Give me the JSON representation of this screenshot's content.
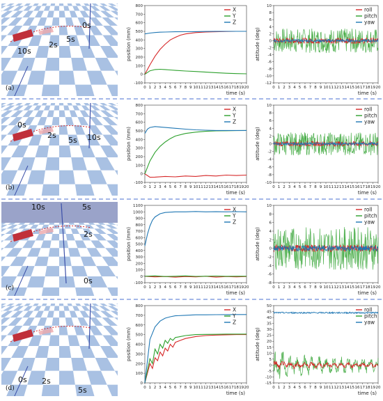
{
  "colors": {
    "x": "#d62728",
    "y": "#2ca02c",
    "z": "#1f77b4",
    "tile": "#a9c1e3",
    "sky": "#dfe8f3",
    "divider": "#4a6fd0"
  },
  "rows": [
    {
      "label": "(a)",
      "scene": {
        "time_labels": [
          "0s",
          "2s",
          "5s",
          "10s"
        ]
      },
      "position": {
        "type": "line",
        "ylabel": "position (mm)",
        "xlabel": "time (s)",
        "ylim": [
          -100,
          800
        ],
        "yticks": [
          -100,
          0,
          100,
          200,
          300,
          400,
          500,
          600,
          700,
          800
        ],
        "xticks": [
          "0",
          "1",
          "2",
          "3",
          "4",
          "5",
          "6",
          "7",
          "8",
          "9",
          "10",
          "11",
          "12",
          "13",
          "14",
          "15",
          "16",
          "17",
          "18",
          "19",
          "20"
        ],
        "legend": [
          "X",
          "Y",
          "Z"
        ],
        "series": [
          {
            "name": "X",
            "x": [
              0,
              1,
              2,
              3,
              4,
              5,
              6,
              7,
              8,
              10,
              12,
              14,
              16,
              18,
              20
            ],
            "values": [
              0,
              110,
              210,
              290,
              350,
              400,
              430,
              455,
              470,
              485,
              492,
              495,
              498,
              500,
              500
            ]
          },
          {
            "name": "Y",
            "x": [
              0,
              1,
              2,
              3,
              4,
              5,
              6,
              8,
              10,
              12,
              14,
              16,
              18,
              20
            ],
            "values": [
              0,
              40,
              55,
              58,
              55,
              50,
              45,
              38,
              32,
              25,
              18,
              12,
              8,
              5
            ]
          },
          {
            "name": "Z",
            "x": [
              0,
              1,
              2,
              3,
              4,
              6,
              8,
              10,
              12,
              14,
              16,
              18,
              20
            ],
            "values": [
              470,
              480,
              486,
              490,
              492,
              495,
              496,
              497,
              498,
              499,
              500,
              500,
              500
            ]
          }
        ]
      },
      "attitude": {
        "type": "line",
        "ylabel": "attitude (deg)",
        "xlabel": "time (s)",
        "ylim": [
          -12,
          10
        ],
        "yticks": [
          -12,
          -10,
          -8,
          -6,
          -4,
          -2,
          0,
          2,
          4,
          6,
          8,
          10
        ],
        "xticks": [
          "0",
          "1",
          "2",
          "3",
          "4",
          "5",
          "6",
          "7",
          "8",
          "9",
          "10",
          "11",
          "12",
          "13",
          "14",
          "15",
          "16",
          "17",
          "18",
          "19",
          "20"
        ],
        "legend": [
          "roll",
          "pitch",
          "yaw"
        ],
        "series": [
          {
            "name": "roll",
            "amplitude": 1.0,
            "offset": 0
          },
          {
            "name": "pitch",
            "amplitude": 3.5,
            "offset": 0
          },
          {
            "name": "yaw",
            "amplitude": 0.5,
            "offset": 0
          }
        ]
      }
    },
    {
      "label": "(b)",
      "scene": {
        "time_labels": [
          "0s",
          "2s",
          "5s",
          "10s"
        ]
      },
      "position": {
        "type": "line",
        "ylabel": "position (mm)",
        "xlabel": "time (s)",
        "ylim": [
          -100,
          800
        ],
        "yticks": [
          -100,
          0,
          100,
          200,
          300,
          400,
          500,
          600,
          700,
          800
        ],
        "xticks": [
          "0",
          "1",
          "2",
          "3",
          "4",
          "5",
          "6",
          "7",
          "8",
          "9",
          "10",
          "11",
          "12",
          "13",
          "14",
          "15",
          "16",
          "17",
          "18",
          "19",
          "20"
        ],
        "legend": [
          "X",
          "Y",
          "Z"
        ],
        "series": [
          {
            "name": "X",
            "x": [
              0,
              1,
              2,
              4,
              6,
              8,
              10,
              12,
              14,
              16,
              18,
              20
            ],
            "values": [
              0,
              -40,
              -38,
              -30,
              -35,
              -25,
              -30,
              -20,
              -25,
              -15,
              -20,
              -15
            ]
          },
          {
            "name": "Y",
            "x": [
              0,
              1,
              2,
              3,
              4,
              5,
              6,
              8,
              10,
              12,
              14,
              16,
              18,
              20
            ],
            "values": [
              0,
              150,
              250,
              320,
              370,
              410,
              440,
              470,
              485,
              495,
              500,
              502,
              503,
              505
            ]
          },
          {
            "name": "Z",
            "x": [
              0,
              0.5,
              1,
              2,
              3,
              4,
              6,
              8,
              10,
              12,
              14,
              16,
              18,
              20
            ],
            "values": [
              470,
              520,
              540,
              550,
              545,
              540,
              530,
              520,
              512,
              508,
              505,
              505,
              505,
              505
            ]
          }
        ]
      },
      "attitude": {
        "type": "line",
        "ylabel": "attitude (deg)",
        "xlabel": "time (s)",
        "ylim": [
          -10,
          10
        ],
        "yticks": [
          -10,
          -8,
          -6,
          -4,
          -2,
          0,
          2,
          4,
          6,
          8,
          10
        ],
        "xticks": [
          "0",
          "1",
          "2",
          "3",
          "4",
          "5",
          "6",
          "7",
          "8",
          "9",
          "10",
          "11",
          "12",
          "13",
          "14",
          "15",
          "16",
          "17",
          "18",
          "19",
          "20"
        ],
        "legend": [
          "roll",
          "pitch",
          "yaw"
        ],
        "series": [
          {
            "name": "roll",
            "amplitude": 0.8,
            "offset": 0
          },
          {
            "name": "pitch",
            "amplitude": 3.0,
            "offset": 0
          },
          {
            "name": "yaw",
            "amplitude": 0.4,
            "offset": 0
          }
        ]
      }
    },
    {
      "label": "(c)",
      "scene": {
        "time_labels": [
          "10s",
          "5s",
          "2s",
          "0s"
        ]
      },
      "position": {
        "type": "line",
        "ylabel": "position (mm)",
        "xlabel": "time (s)",
        "ylim": [
          -100,
          1100
        ],
        "yticks": [
          -100,
          0,
          100,
          200,
          300,
          400,
          500,
          600,
          700,
          800,
          900,
          1000,
          1100
        ],
        "xticks": [
          "0",
          "1",
          "2",
          "3",
          "4",
          "5",
          "6",
          "7",
          "8",
          "9",
          "10",
          "11",
          "12",
          "13",
          "14",
          "15",
          "16",
          "17",
          "18",
          "19",
          "20"
        ],
        "legend": [
          "X",
          "Y",
          "Z"
        ],
        "series": [
          {
            "name": "X",
            "x": [
              0,
              2,
              4,
              6,
              8,
              10,
              12,
              14,
              16,
              18,
              20
            ],
            "values": [
              0,
              -10,
              -5,
              -15,
              -5,
              -10,
              0,
              -15,
              -5,
              -10,
              -5
            ]
          },
          {
            "name": "Y",
            "x": [
              0,
              2,
              4,
              6,
              8,
              10,
              12,
              14,
              16,
              18,
              20
            ],
            "values": [
              0,
              5,
              -5,
              0,
              5,
              -3,
              0,
              3,
              -2,
              0,
              0
            ]
          },
          {
            "name": "Z",
            "x": [
              0,
              0.5,
              1,
              1.5,
              2,
              3,
              4,
              6,
              8,
              10,
              12,
              14,
              16,
              18,
              20
            ],
            "values": [
              470,
              650,
              780,
              870,
              920,
              970,
              990,
              1000,
              1000,
              1005,
              1000,
              1002,
              1000,
              1003,
              1000
            ]
          }
        ]
      },
      "attitude": {
        "type": "line",
        "ylabel": "attitude (deg)",
        "xlabel": "time (s)",
        "ylim": [
          -8,
          10
        ],
        "yticks": [
          -8,
          -6,
          -4,
          -2,
          0,
          2,
          4,
          6,
          8,
          10
        ],
        "xticks": [
          "0",
          "1",
          "2",
          "3",
          "4",
          "5",
          "6",
          "7",
          "8",
          "9",
          "10",
          "11",
          "12",
          "13",
          "14",
          "15",
          "16",
          "17",
          "18",
          "19",
          "20"
        ],
        "legend": [
          "roll",
          "pitch",
          "yaw"
        ],
        "series": [
          {
            "name": "roll",
            "amplitude": 1.0,
            "offset": 0
          },
          {
            "name": "pitch",
            "amplitude": 5.0,
            "offset": 0
          },
          {
            "name": "yaw",
            "amplitude": 0.8,
            "offset": 0
          }
        ]
      }
    },
    {
      "label": "(d)",
      "scene": {
        "time_labels": [
          "0s",
          "2s",
          "5s"
        ]
      },
      "position": {
        "type": "line",
        "ylabel": "position (mm)",
        "xlabel": "time (s)",
        "ylim": [
          0,
          800
        ],
        "yticks": [
          0,
          100,
          200,
          300,
          400,
          500,
          600,
          700,
          800
        ],
        "xticks": [
          "0",
          "1",
          "2",
          "3",
          "4",
          "5",
          "6",
          "7",
          "8",
          "9",
          "10",
          "11",
          "12",
          "13",
          "14",
          "15",
          "16",
          "17",
          "18",
          "19",
          "20"
        ],
        "legend": [
          "X",
          "Y",
          "Z"
        ],
        "series": [
          {
            "name": "X",
            "x": [
              0,
              1,
              1.5,
              2,
              2.5,
              3,
              3.5,
              4,
              4.5,
              5,
              5.5,
              6,
              7,
              8,
              9,
              10,
              12,
              14,
              16,
              18,
              20
            ],
            "values": [
              0,
              200,
              150,
              260,
              230,
              320,
              280,
              360,
              330,
              400,
              370,
              420,
              440,
              460,
              470,
              480,
              490,
              495,
              498,
              500,
              500
            ]
          },
          {
            "name": "Y",
            "x": [
              0,
              1,
              1.5,
              2,
              2.5,
              3,
              3.5,
              4,
              4.5,
              5,
              5.5,
              6,
              7,
              8,
              9,
              10,
              12,
              14,
              16,
              18,
              20
            ],
            "values": [
              0,
              250,
              200,
              350,
              300,
              400,
              360,
              440,
              410,
              460,
              440,
              470,
              480,
              490,
              495,
              500,
              502,
              503,
              505,
              505,
              505
            ]
          },
          {
            "name": "Z",
            "x": [
              0,
              1,
              2,
              3,
              4,
              5,
              6,
              8,
              10,
              12,
              14,
              16,
              18,
              20
            ],
            "values": [
              0,
              450,
              580,
              640,
              670,
              685,
              695,
              700,
              705,
              705,
              706,
              707,
              708,
              708
            ]
          }
        ]
      },
      "attitude": {
        "type": "line",
        "ylabel": "attitude (deg)",
        "xlabel": "time (s)",
        "ylim": [
          -15,
          50
        ],
        "yticks": [
          -15,
          -10,
          -5,
          0,
          5,
          10,
          15,
          20,
          25,
          30,
          35,
          40,
          45,
          50
        ],
        "xticks": [
          "0",
          "1",
          "2",
          "3",
          "4",
          "5",
          "6",
          "7",
          "8",
          "9",
          "10",
          "11",
          "12",
          "13",
          "14",
          "15",
          "16",
          "17",
          "18",
          "19",
          "20"
        ],
        "legend": [
          "roll",
          "pitch",
          "yaw"
        ],
        "series": [
          {
            "name": "roll",
            "amplitude": 3.0,
            "offset": 0
          },
          {
            "name": "pitch",
            "amplitude": 8.0,
            "offset": 0
          },
          {
            "name": "yaw",
            "amplitude": 0.8,
            "offset": 44
          }
        ]
      }
    }
  ]
}
